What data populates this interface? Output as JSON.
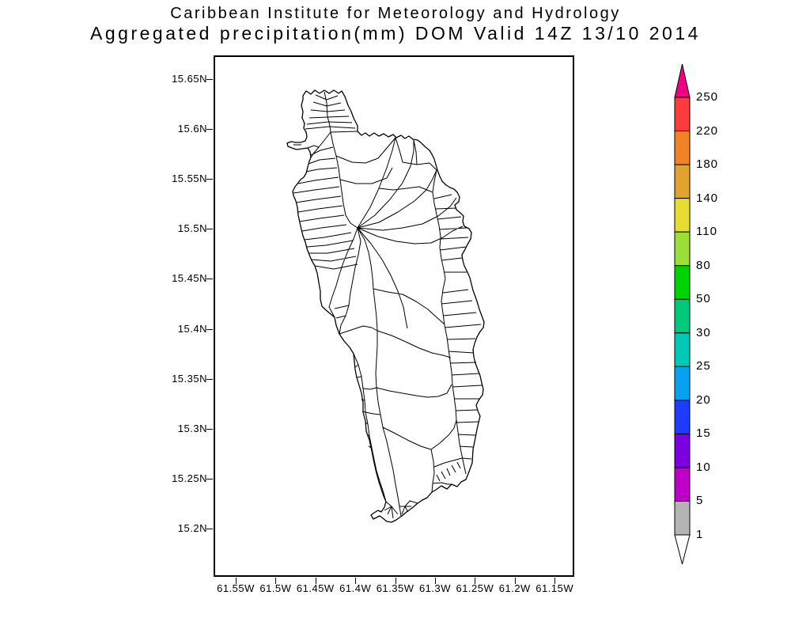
{
  "title": {
    "line1": "Caribbean Institute for Meteorology and Hydrology",
    "line2": "Aggregated precipitation(mm) DOM Valid 14Z 13/10 2014"
  },
  "axes": {
    "lat_ticks": [
      "15.65N",
      "15.6N",
      "15.55N",
      "15.5N",
      "15.45N",
      "15.4N",
      "15.35N",
      "15.3N",
      "15.25N",
      "15.2N"
    ],
    "lon_ticks": [
      "61.55W",
      "61.5W",
      "61.45W",
      "61.4W",
      "61.35W",
      "61.3W",
      "61.25W",
      "61.2W",
      "61.15W"
    ]
  },
  "colorbar": {
    "tick_labels_top_to_bottom": [
      "250",
      "220",
      "180",
      "140",
      "110",
      "80",
      "50",
      "30",
      "25",
      "20",
      "15",
      "10",
      "5",
      "1"
    ],
    "segment_colors_top_to_bottom": [
      "#fa3c3c",
      "#f08228",
      "#dfa32e",
      "#e6dc32",
      "#9bdf38",
      "#00d200",
      "#00c87d",
      "#00c8b4",
      "#0aa0f0",
      "#1e3cff",
      "#7d00e1",
      "#bc00c8",
      "#b4b4b4"
    ],
    "arrow_above_color": "#f00082",
    "arrow_below_color": "#ffffff"
  },
  "chart_data": {
    "type": "map",
    "region": "DOM",
    "variable": "Aggregated precipitation(mm)",
    "valid_time": "14Z 13/10 2014",
    "lat_range": [
      "15.2N",
      "15.65N"
    ],
    "lon_range": [
      "61.55W",
      "61.15W"
    ],
    "colorbar_levels": [
      250,
      220,
      180,
      140,
      110,
      80,
      50,
      30,
      25,
      20,
      15,
      10,
      5,
      1
    ],
    "map_fill": "none (all watershed polygons unshaded / below 1 mm)"
  }
}
